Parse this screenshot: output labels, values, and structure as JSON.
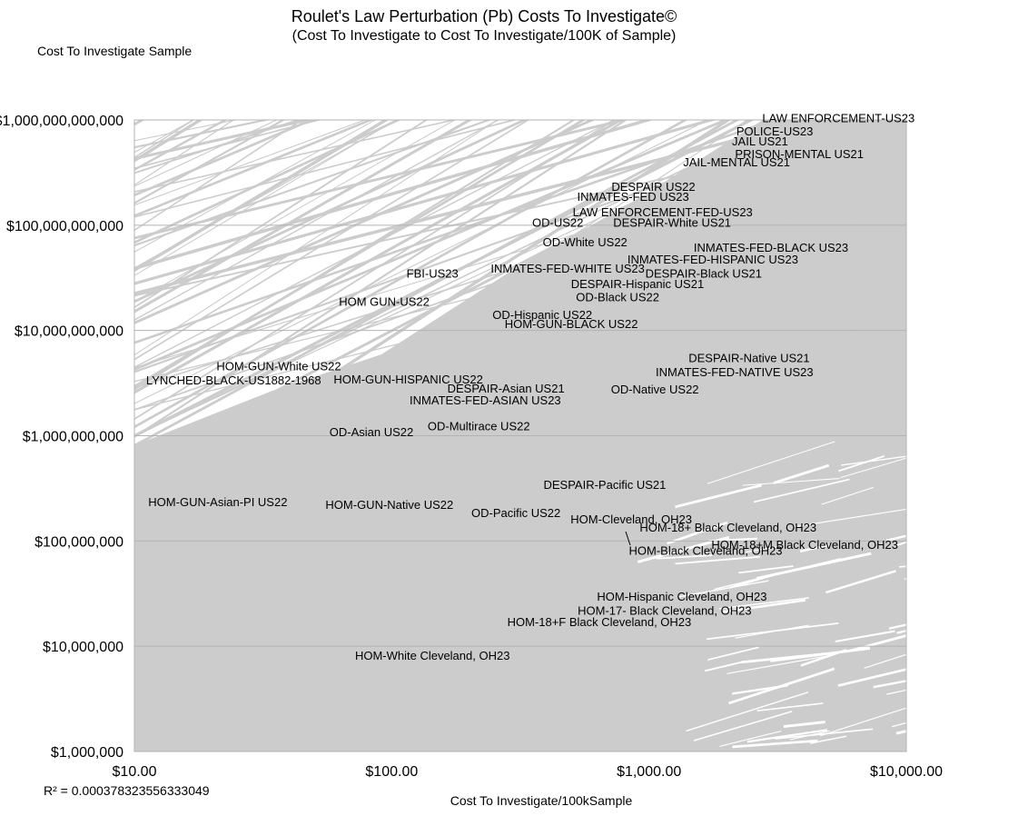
{
  "chart_data": {
    "type": "scatter",
    "title": "Roulet's Law Perturbation (Pb) Costs To Investigate©",
    "subtitle": "(Cost To Investigate to Cost To Investigate/100K of Sample)",
    "xlabel": "Cost To Investigate/100kSample",
    "ylabel": "Cost To Investigate Sample",
    "x_scale": "log",
    "y_scale": "log",
    "xlim": [
      10,
      10000
    ],
    "ylim": [
      1000000,
      1000000000000
    ],
    "x_ticks": [
      10,
      100,
      1000,
      10000
    ],
    "x_tick_labels": [
      "$10.00",
      "$100.00",
      "$1,000.00",
      "$10,000.00"
    ],
    "y_ticks": [
      1000000,
      10000000,
      100000000,
      1000000000,
      10000000000,
      100000000000,
      1000000000000
    ],
    "y_tick_labels": [
      "$1,000,000",
      "$10,000,000",
      "$100,000,000",
      "$1,000,000,000",
      "$10,000,000,000",
      "$100,000,000,000",
      "$1,000,000,000,000"
    ],
    "grid": "horizontal",
    "line_color": "#cccccc",
    "annotation": "R² = 0.000378323556333049",
    "points": [
      {
        "label": "LAW ENFORCEMENT-US23",
        "x": 5450,
        "y": 1050000000000
      },
      {
        "label": "POLICE-US23",
        "x": 3080,
        "y": 790000000000
      },
      {
        "label": "JAIL US21",
        "x": 2700,
        "y": 630000000000
      },
      {
        "label": "PRISON-MENTAL US21",
        "x": 3840,
        "y": 480000000000
      },
      {
        "label": "JAIL-MENTAL US21",
        "x": 2190,
        "y": 400000000000
      },
      {
        "label": "DESPAIR US22",
        "x": 1040,
        "y": 235000000000
      },
      {
        "label": "INMATES-FED US23",
        "x": 867,
        "y": 188000000000
      },
      {
        "label": "LAW ENFORCEMENT-FED-US23",
        "x": 1130,
        "y": 134000000000
      },
      {
        "label": "OD-US22",
        "x": 442,
        "y": 107000000000
      },
      {
        "label": "DESPAIR-White US21",
        "x": 1230,
        "y": 107000000000
      },
      {
        "label": "OD-White US22",
        "x": 564,
        "y": 69700000000
      },
      {
        "label": "INMATES-FED-BLACK US23",
        "x": 2980,
        "y": 62000000000
      },
      {
        "label": "INMATES-FED-HISPANIC US23",
        "x": 1770,
        "y": 48000000000
      },
      {
        "label": "FBI-US23",
        "x": 144,
        "y": 35000000000
      },
      {
        "label": "INMATES-FED-WHITE US23",
        "x": 483,
        "y": 39000000000
      },
      {
        "label": "DESPAIR-Black US21",
        "x": 1630,
        "y": 35000000000
      },
      {
        "label": "DESPAIR-Hispanic US21",
        "x": 902,
        "y": 28000000000
      },
      {
        "label": "OD-Black US22",
        "x": 755,
        "y": 21000000000
      },
      {
        "label": "HOM GUN-US22",
        "x": 93.5,
        "y": 19000000000
      },
      {
        "label": "OD-Hispanic US22",
        "x": 385,
        "y": 14200000000
      },
      {
        "label": "HOM-GUN-BLACK US22",
        "x": 499,
        "y": 11600000000
      },
      {
        "label": "DESPAIR-Native US21",
        "x": 2450,
        "y": 5500000000
      },
      {
        "label": "HOM-GUN-White US22",
        "x": 36.4,
        "y": 4600000000
      },
      {
        "label": "INMATES-FED-NATIVE US23",
        "x": 2150,
        "y": 4050000000
      },
      {
        "label": "LYNCHED-BLACK-US1882-1968",
        "x": 24.3,
        "y": 3390000000
      },
      {
        "label": "HOM-GUN-HISPANIC US22",
        "x": 116,
        "y": 3460000000
      },
      {
        "label": "DESPAIR-Asian US21",
        "x": 278,
        "y": 2840000000
      },
      {
        "label": "OD-Native US22",
        "x": 1054,
        "y": 2780000000
      },
      {
        "label": "INMATES-FED-ASIAN US23",
        "x": 231,
        "y": 2190000000
      },
      {
        "label": "OD-Multirace US22",
        "x": 218,
        "y": 1250000000
      },
      {
        "label": "OD-Asian US22",
        "x": 83.4,
        "y": 1090000000
      },
      {
        "label": "DESPAIR-Pacific US21",
        "x": 673,
        "y": 344000000
      },
      {
        "label": "HOM-GUN-Asian-PI US22",
        "x": 21.1,
        "y": 236000000
      },
      {
        "label": "HOM-GUN-Native US22",
        "x": 98,
        "y": 222000000
      },
      {
        "label": "OD-Pacific US22",
        "x": 304,
        "y": 186000000
      },
      {
        "label": "HOM-Cleveland, OH23",
        "x": 853,
        "y": 162000000
      },
      {
        "label": "HOM-18+ Black Cleveland, OH23",
        "x": 2030,
        "y": 135000000
      },
      {
        "label": "HOM-18+M Black Cleveland, OH23",
        "x": 4030,
        "y": 93000000
      },
      {
        "label": "HOM-Black Cleveland, OH23",
        "x": 1660,
        "y": 82000000
      },
      {
        "label": "HOM-Hispanic Cleveland, OH23",
        "x": 1343,
        "y": 29900000
      },
      {
        "label": "HOM-17- Black Cleveland, OH23",
        "x": 1150,
        "y": 22100000
      },
      {
        "label": "HOM-18+F Black Cleveland, OH23",
        "x": 641,
        "y": 17100000
      },
      {
        "label": "HOM-White Cleveland, OH23",
        "x": 144,
        "y": 8200000
      }
    ]
  }
}
